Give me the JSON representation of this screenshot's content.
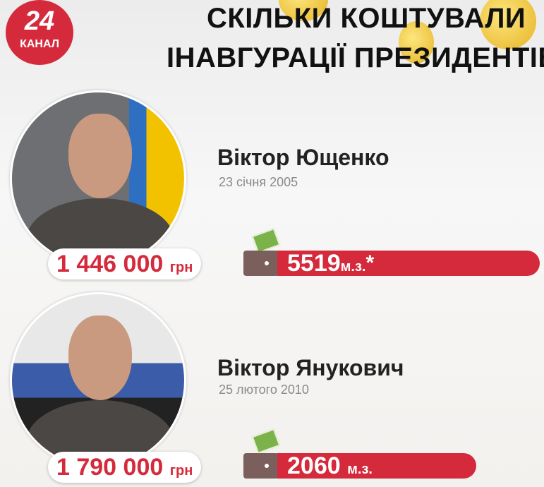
{
  "logo": {
    "number": "24",
    "text": "КАНАЛ"
  },
  "title": {
    "line1": "СКІЛЬКИ КОШТУВАЛИ",
    "line2": "ІНАВГУРАЦІЇ ПРЕЗИДЕНТІВ"
  },
  "colors": {
    "accent": "#d42a3c",
    "wallet": "#7a5f5c"
  },
  "presidents": [
    {
      "name": "Віктор Ющенко",
      "date": "23 січня 2005",
      "amount": "1 446 000",
      "currency": "грн",
      "min_wages": "5519",
      "unit": "м.з.",
      "footnote_mark": "*",
      "bar_value": 5519
    },
    {
      "name": "Віктор Янукович",
      "date": "25 лютого 2010",
      "amount": "1 790 000",
      "currency": "грн",
      "min_wages": "2060",
      "unit": "м.з.",
      "footnote_mark": "",
      "bar_value": 2060
    }
  ]
}
